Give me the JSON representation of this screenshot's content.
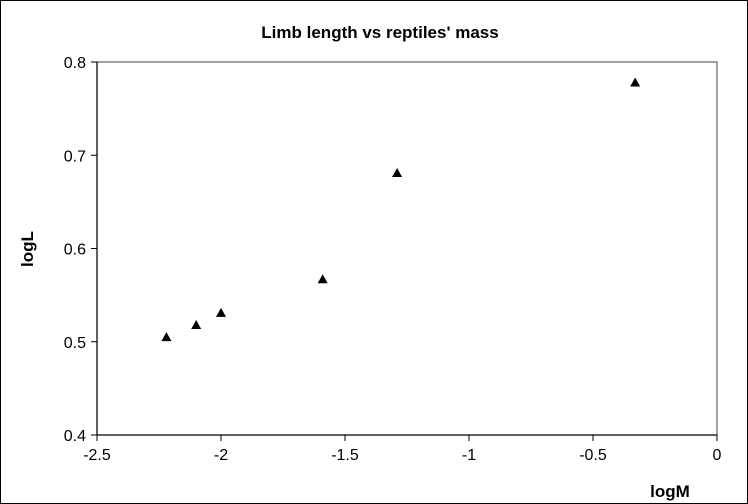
{
  "chart_data": {
    "type": "scatter",
    "title": "Limb length vs reptiles' mass",
    "xlabel": "logM",
    "ylabel": "logL",
    "xlim": [
      -2.5,
      0
    ],
    "ylim": [
      0.4,
      0.8
    ],
    "x_ticks": [
      -2.5,
      -2,
      -1.5,
      -1,
      -0.5,
      0
    ],
    "y_ticks": [
      0.4,
      0.5,
      0.6,
      0.7,
      0.8
    ],
    "x_tick_labels": [
      "-2.5",
      "-2",
      "-1.5",
      "-1",
      "-0.5",
      "0"
    ],
    "y_tick_labels": [
      "0.4",
      "0.5",
      "0.6",
      "0.7",
      "0.8"
    ],
    "grid": false,
    "legend": "none",
    "marker": "triangle",
    "marker_color": "#000000",
    "plot_border_color": "#808080",
    "series": [
      {
        "x": [
          -2.22,
          -2.1,
          -2.0,
          -1.59,
          -1.29,
          -0.33
        ],
        "y": [
          0.505,
          0.518,
          0.531,
          0.567,
          0.681,
          0.778
        ]
      }
    ]
  }
}
